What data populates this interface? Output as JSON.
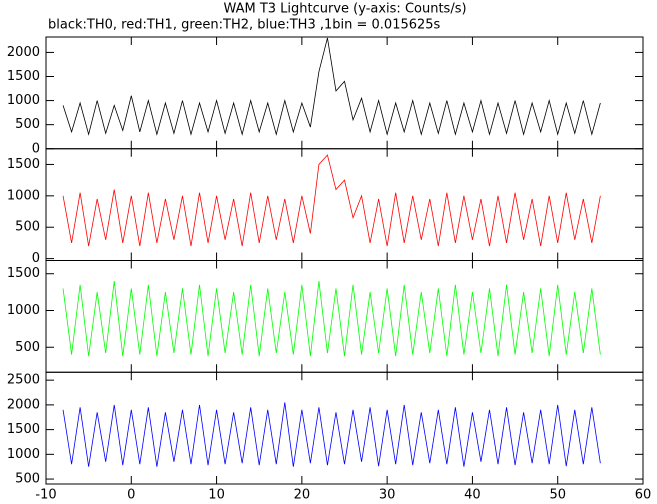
{
  "chart_data": [
    {
      "type": "line",
      "title": "WAM T3 Lightcurve (y-axis: Counts/s)",
      "subtitle": "black:TH0, red:TH1, green:TH2, blue:TH3 ,1bin = 0.015625s",
      "x": [
        -8,
        -7,
        -6,
        -5,
        -4,
        -3,
        -2,
        -1,
        0,
        1,
        2,
        3,
        4,
        5,
        6,
        7,
        8,
        9,
        10,
        11,
        12,
        13,
        14,
        15,
        16,
        17,
        18,
        19,
        20,
        21,
        22,
        23,
        24,
        25,
        26,
        27,
        28,
        29,
        30,
        31,
        32,
        33,
        34,
        35,
        36,
        37,
        38,
        39,
        40,
        41,
        42,
        43,
        44,
        45,
        46,
        47,
        48,
        49,
        50,
        51,
        52,
        53,
        54,
        55
      ],
      "values": [
        900,
        350,
        950,
        300,
        1000,
        320,
        900,
        380,
        1100,
        350,
        1000,
        300,
        950,
        320,
        1000,
        300,
        950,
        350,
        1000,
        320,
        950,
        300,
        1000,
        350,
        950,
        300,
        1000,
        350,
        950,
        450,
        1600,
        2300,
        1200,
        1400,
        600,
        1050,
        350,
        1000,
        300,
        950,
        350,
        1000,
        300,
        950,
        320,
        1000,
        300,
        950,
        350,
        1000,
        300,
        950,
        320,
        1000,
        300,
        950,
        350,
        1000,
        300,
        950,
        320,
        1000,
        300,
        950
      ],
      "color": "#000000",
      "xlim": [
        -10,
        60
      ],
      "xticks": [
        -10,
        0,
        10,
        20,
        30,
        40,
        50,
        60
      ],
      "ylim": [
        0,
        2320
      ],
      "yticks": [
        0,
        500,
        1000,
        1500,
        2000
      ]
    },
    {
      "type": "line",
      "x": [
        -8,
        -7,
        -6,
        -5,
        -4,
        -3,
        -2,
        -1,
        0,
        1,
        2,
        3,
        4,
        5,
        6,
        7,
        8,
        9,
        10,
        11,
        12,
        13,
        14,
        15,
        16,
        17,
        18,
        19,
        20,
        21,
        22,
        23,
        24,
        25,
        26,
        27,
        28,
        29,
        30,
        31,
        32,
        33,
        34,
        35,
        36,
        37,
        38,
        39,
        40,
        41,
        42,
        43,
        44,
        45,
        46,
        47,
        48,
        49,
        50,
        51,
        52,
        53,
        54,
        55
      ],
      "values": [
        1000,
        250,
        1050,
        200,
        950,
        300,
        1100,
        250,
        1000,
        200,
        1050,
        250,
        950,
        300,
        1000,
        200,
        1050,
        250,
        1000,
        300,
        950,
        200,
        1050,
        250,
        1000,
        300,
        950,
        250,
        1000,
        400,
        1500,
        1650,
        1100,
        1250,
        650,
        1000,
        250,
        950,
        200,
        1050,
        250,
        1000,
        300,
        950,
        200,
        1050,
        250,
        1000,
        300,
        950,
        200,
        1000,
        250,
        1050,
        300,
        950,
        200,
        1000,
        250,
        1050,
        300,
        950,
        250,
        1000
      ],
      "color": "#ff0000",
      "xlim": [
        -10,
        60
      ],
      "xticks": [
        -10,
        0,
        10,
        20,
        30,
        40,
        50,
        60
      ],
      "ylim": [
        -30,
        1750
      ],
      "yticks": [
        0,
        500,
        1000,
        1500
      ]
    },
    {
      "type": "line",
      "x": [
        -8,
        -7,
        -6,
        -5,
        -4,
        -3,
        -2,
        -1,
        0,
        1,
        2,
        3,
        4,
        5,
        6,
        7,
        8,
        9,
        10,
        11,
        12,
        13,
        14,
        15,
        16,
        17,
        18,
        19,
        20,
        21,
        22,
        23,
        24,
        25,
        26,
        27,
        28,
        29,
        30,
        31,
        32,
        33,
        34,
        35,
        36,
        37,
        38,
        39,
        40,
        41,
        42,
        43,
        44,
        45,
        46,
        47,
        48,
        49,
        50,
        51,
        52,
        53,
        54,
        55
      ],
      "values": [
        1300,
        400,
        1350,
        380,
        1250,
        420,
        1400,
        380,
        1300,
        400,
        1350,
        380,
        1250,
        420,
        1300,
        400,
        1350,
        380,
        1300,
        420,
        1250,
        400,
        1350,
        380,
        1300,
        420,
        1250,
        400,
        1350,
        380,
        1400,
        420,
        1300,
        380,
        1350,
        400,
        1250,
        420,
        1300,
        380,
        1350,
        400,
        1250,
        420,
        1300,
        380,
        1350,
        400,
        1250,
        420,
        1300,
        380,
        1350,
        400,
        1250,
        420,
        1300,
        380,
        1350,
        400,
        1250,
        420,
        1300,
        400
      ],
      "color": "#00ff00",
      "xlim": [
        -10,
        60
      ],
      "xticks": [
        -10,
        0,
        10,
        20,
        30,
        40,
        50,
        60
      ],
      "ylim": [
        160,
        1680
      ],
      "yticks": [
        500,
        1000,
        1500
      ]
    },
    {
      "type": "line",
      "x": [
        -8,
        -7,
        -6,
        -5,
        -4,
        -3,
        -2,
        -1,
        0,
        1,
        2,
        3,
        4,
        5,
        6,
        7,
        8,
        9,
        10,
        11,
        12,
        13,
        14,
        15,
        16,
        17,
        18,
        19,
        20,
        21,
        22,
        23,
        24,
        25,
        26,
        27,
        28,
        29,
        30,
        31,
        32,
        33,
        34,
        35,
        36,
        37,
        38,
        39,
        40,
        41,
        42,
        43,
        44,
        45,
        46,
        47,
        48,
        49,
        50,
        51,
        52,
        53,
        54,
        55
      ],
      "values": [
        1900,
        800,
        1950,
        750,
        1850,
        850,
        2000,
        780,
        1900,
        800,
        1950,
        750,
        1850,
        850,
        1900,
        800,
        2000,
        780,
        1900,
        800,
        1850,
        820,
        1950,
        780,
        1900,
        800,
        2050,
        750,
        1900,
        820,
        1950,
        780,
        1850,
        800,
        1900,
        850,
        1950,
        760,
        1900,
        800,
        2000,
        780,
        1850,
        820,
        1900,
        800,
        1950,
        750,
        1850,
        850,
        1900,
        800,
        1950,
        780,
        1850,
        820,
        1900,
        800,
        2000,
        760,
        1900,
        800,
        1950,
        820
      ],
      "color": "#0000ff",
      "xlim": [
        -10,
        60
      ],
      "xticks": [
        -10,
        0,
        10,
        20,
        30,
        40,
        50,
        60
      ],
      "ylim": [
        400,
        2660
      ],
      "yticks": [
        500,
        1000,
        1500,
        2000,
        2500
      ]
    }
  ]
}
